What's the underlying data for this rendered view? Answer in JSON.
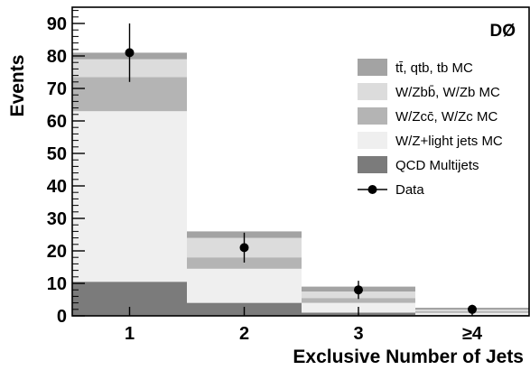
{
  "chart_data": {
    "type": "bar",
    "stacked": true,
    "experiment_label": "DØ",
    "xlabel": "Exclusive Number of Jets",
    "ylabel": "Events",
    "categories": [
      "1",
      "2",
      "3",
      "≥4"
    ],
    "ylim": [
      0,
      95
    ],
    "yticks": [
      0,
      10,
      20,
      30,
      40,
      50,
      60,
      70,
      80,
      90
    ],
    "grid": false,
    "legend_position": "top-right",
    "series": [
      {
        "name": "QCD Multijets",
        "values": [
          10.5,
          4.0,
          1.0,
          0.3
        ],
        "color": "#7b7b7b"
      },
      {
        "name": "W/Z+light jets MC",
        "values": [
          52.5,
          10.5,
          3.0,
          0.6
        ],
        "color": "#efefef"
      },
      {
        "name": "W/Zcc̄, W/Zc MC",
        "values": [
          10.5,
          3.5,
          1.5,
          0.5
        ],
        "color": "#b4b4b4"
      },
      {
        "name": "W/Zbb̄, W/Zb MC",
        "values": [
          5.5,
          6.0,
          2.0,
          0.5
        ],
        "color": "#dcdcdc"
      },
      {
        "name": "tt̄, qtb, tb MC",
        "values": [
          2.0,
          2.0,
          1.5,
          0.6
        ],
        "color": "#a3a3a3"
      }
    ],
    "data": {
      "name": "Data",
      "values": [
        81,
        21,
        8,
        2
      ],
      "errors": [
        9,
        4.6,
        2.8,
        1.4
      ]
    }
  }
}
